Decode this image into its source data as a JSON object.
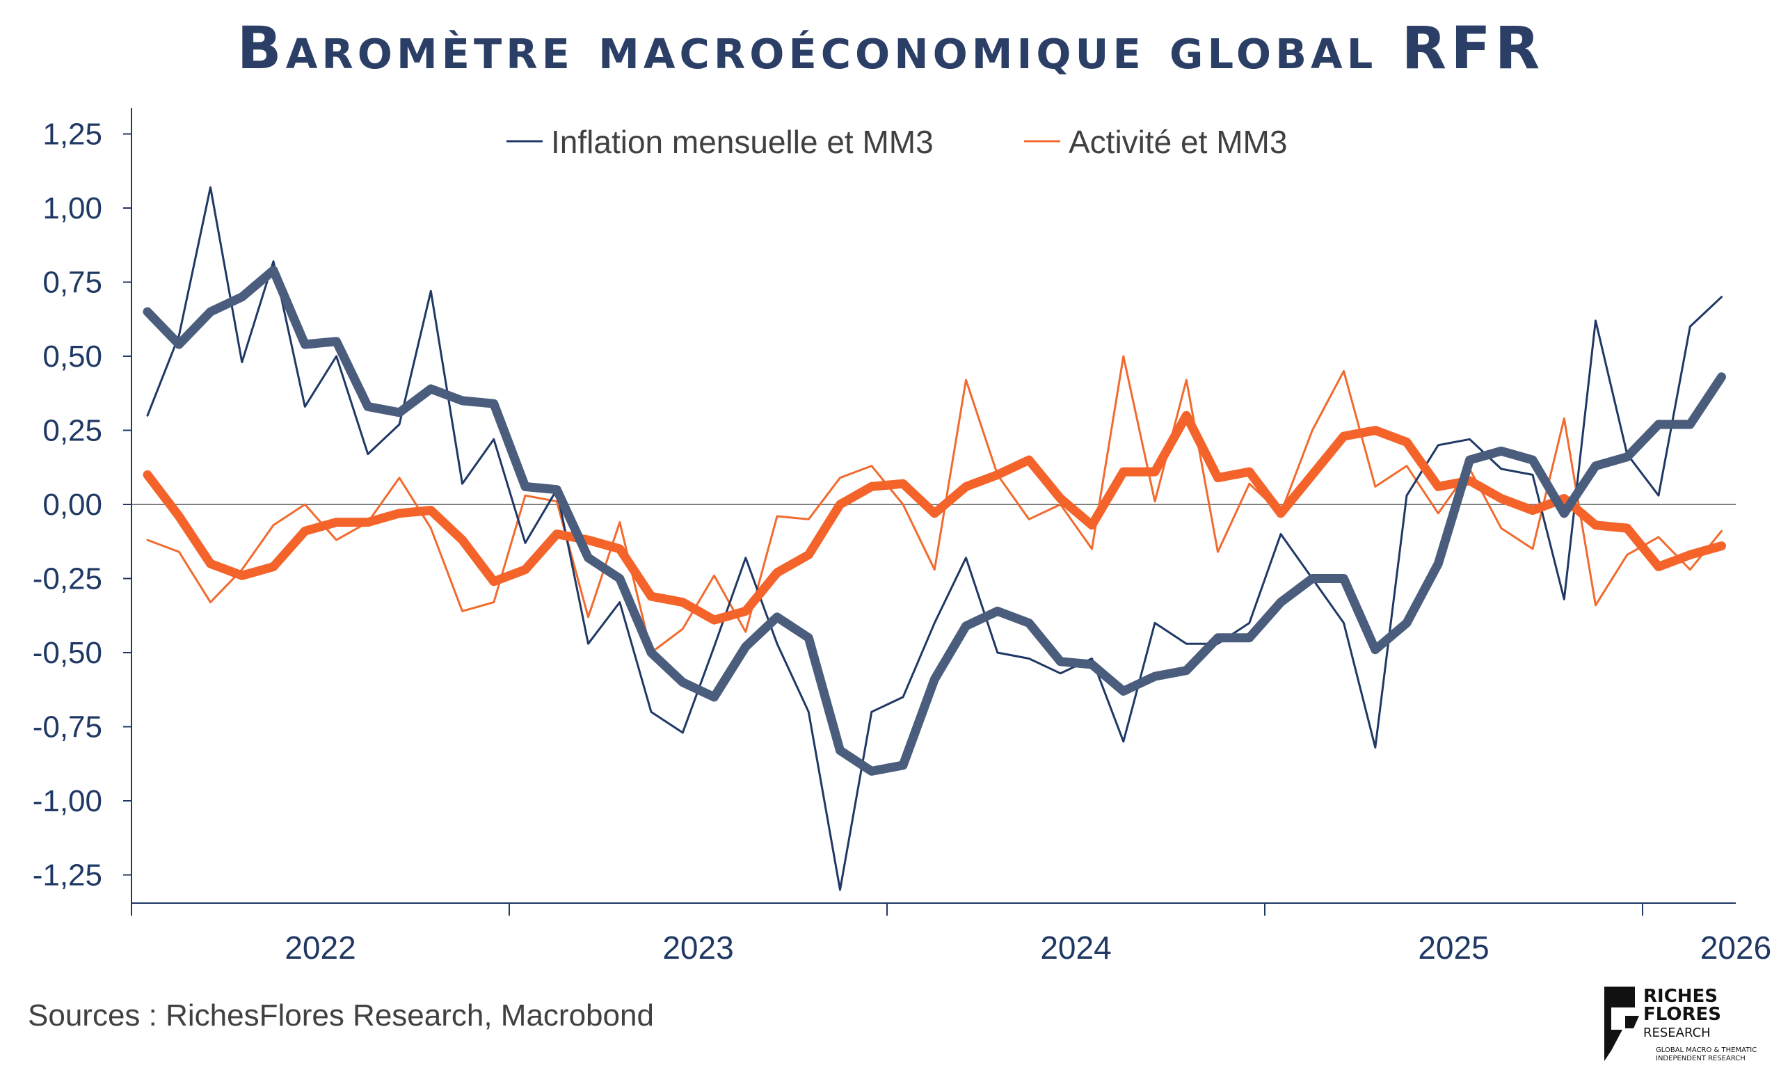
{
  "title": "Baromètre macroéconomique global RFR",
  "source": "Sources : RichesFlores Research, Macrobond",
  "logo": {
    "line1": "RICHES",
    "line2": "FLORES",
    "line3": "RESEARCH",
    "tagline1": "GLOBAL MACRO & THEMATIC",
    "tagline2": "INDEPENDENT RESEARCH"
  },
  "colors": {
    "inflation_thin": "#1f3864",
    "inflation_thick": "#4b5d7d",
    "activity_thin": "#f26a2e",
    "activity_thick": "#f4632a",
    "axis": "#1f3864"
  },
  "chart_data": {
    "type": "line",
    "title": "Baromètre macroéconomique global RFR",
    "frequency": "monthly",
    "x_start": "2022-01",
    "x_end": "2026-03",
    "ylim": [
      -1.35,
      1.35
    ],
    "yticks": [
      "1,25",
      "1,00",
      "0,75",
      "0,50",
      "0,25",
      "0,00",
      "-0,25",
      "-0,50",
      "-0,75",
      "-1,00",
      "-1,25"
    ],
    "ytick_values": [
      1.25,
      1.0,
      0.75,
      0.5,
      0.25,
      0,
      -0.25,
      -0.5,
      -0.75,
      -1.0,
      -1.25
    ],
    "xtick_labels": [
      "2022",
      "2023",
      "2024",
      "2025",
      "2026"
    ],
    "legend_position": "top-center",
    "legend": [
      "Inflation mensuelle et MM3",
      "Activité et MM3"
    ],
    "series": [
      {
        "name": "Inflation mensuelle",
        "style": "thin",
        "color_key": "inflation_thin",
        "values": [
          0.3,
          0.57,
          1.07,
          0.48,
          0.82,
          0.33,
          0.5,
          0.17,
          0.27,
          0.72,
          0.07,
          0.22,
          -0.13,
          0.05,
          -0.47,
          -0.33,
          -0.7,
          -0.77,
          -0.48,
          -0.18,
          -0.47,
          -0.7,
          -1.3,
          -0.7,
          -0.65,
          -0.4,
          -0.18,
          -0.5,
          -0.52,
          -0.57,
          -0.52,
          -0.8,
          -0.4,
          -0.47,
          -0.47,
          -0.4,
          -0.1,
          -0.25,
          -0.4,
          -0.82,
          0.03,
          0.2,
          0.22,
          0.12,
          0.1,
          -0.32,
          0.62,
          0.17,
          0.03,
          0.6,
          0.7
        ]
      },
      {
        "name": "Inflation MM3",
        "style": "thick",
        "color_key": "inflation_thick",
        "values": [
          0.65,
          0.54,
          0.65,
          0.7,
          0.79,
          0.54,
          0.55,
          0.33,
          0.31,
          0.39,
          0.35,
          0.34,
          0.06,
          0.05,
          -0.18,
          -0.25,
          -0.5,
          -0.6,
          -0.65,
          -0.48,
          -0.38,
          -0.45,
          -0.83,
          -0.9,
          -0.88,
          -0.59,
          -0.41,
          -0.36,
          -0.4,
          -0.53,
          -0.54,
          -0.63,
          -0.58,
          -0.56,
          -0.45,
          -0.45,
          -0.33,
          -0.25,
          -0.25,
          -0.49,
          -0.4,
          -0.2,
          0.15,
          0.18,
          0.15,
          -0.03,
          0.13,
          0.16,
          0.27,
          0.27,
          0.43
        ]
      },
      {
        "name": "Activité",
        "style": "thin",
        "color_key": "activity_thin",
        "values": [
          -0.12,
          -0.16,
          -0.33,
          -0.22,
          -0.07,
          0.0,
          -0.12,
          -0.06,
          0.09,
          -0.08,
          -0.36,
          -0.33,
          0.03,
          0.01,
          -0.38,
          -0.06,
          -0.5,
          -0.42,
          -0.24,
          -0.43,
          -0.04,
          -0.05,
          0.09,
          0.13,
          0.0,
          -0.22,
          0.42,
          0.1,
          -0.05,
          0.0,
          -0.15,
          0.5,
          0.01,
          0.42,
          -0.16,
          0.07,
          -0.03,
          0.25,
          0.45,
          0.06,
          0.13,
          -0.03,
          0.12,
          -0.08,
          -0.15,
          0.29,
          -0.34,
          -0.17,
          -0.11,
          -0.22,
          -0.09
        ]
      },
      {
        "name": "Activité MM3",
        "style": "thick",
        "color_key": "activity_thick",
        "values": [
          0.1,
          -0.04,
          -0.2,
          -0.24,
          -0.21,
          -0.09,
          -0.06,
          -0.06,
          -0.03,
          -0.02,
          -0.12,
          -0.26,
          -0.22,
          -0.1,
          -0.12,
          -0.15,
          -0.31,
          -0.33,
          -0.39,
          -0.36,
          -0.23,
          -0.17,
          0.0,
          0.06,
          0.07,
          -0.03,
          0.06,
          0.1,
          0.15,
          0.02,
          -0.07,
          0.11,
          0.11,
          0.3,
          0.09,
          0.11,
          -0.03,
          0.1,
          0.23,
          0.25,
          0.21,
          0.06,
          0.08,
          0.02,
          -0.02,
          0.02,
          -0.07,
          -0.08,
          -0.21,
          -0.17,
          -0.14
        ]
      }
    ]
  }
}
